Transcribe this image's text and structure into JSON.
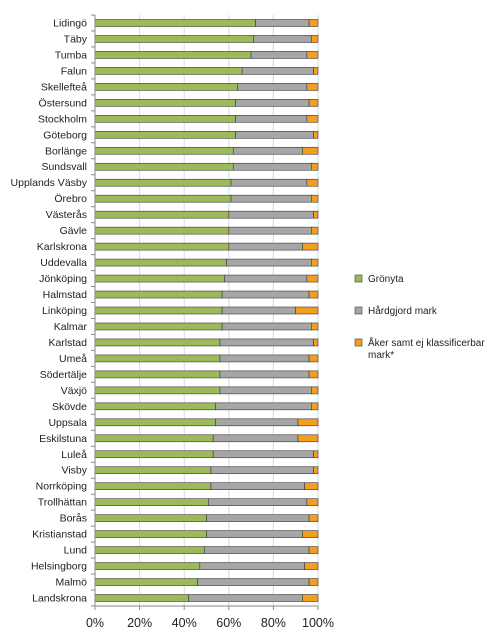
{
  "chart_data": {
    "type": "bar",
    "orientation": "horizontal",
    "stacked": "percent",
    "categories": [
      "Lidingö",
      "Täby",
      "Tumba",
      "Falun",
      "Skellefteå",
      "Östersund",
      "Stockholm",
      "Göteborg",
      "Borlänge",
      "Sundsvall",
      "Upplands Väsby",
      "Örebro",
      "Västerås",
      "Gävle",
      "Karlskrona",
      "Uddevalla",
      "Jönköping",
      "Halmstad",
      "Linköping",
      "Kalmar",
      "Karlstad",
      "Umeå",
      "Södertälje",
      "Växjö",
      "Skövde",
      "Uppsala",
      "Eskilstuna",
      "Luleå",
      "Visby",
      "Norrköping",
      "Trollhättan",
      "Borås",
      "Kristianstad",
      "Lund",
      "Helsingborg",
      "Malmö",
      "Landskrona"
    ],
    "series": [
      {
        "name": "Grönyta",
        "color": "#9bbb59",
        "values": [
          72,
          71,
          70,
          66,
          64,
          63,
          63,
          63,
          62,
          62,
          61,
          61,
          60,
          60,
          60,
          59,
          58,
          57,
          57,
          57,
          56,
          56,
          56,
          56,
          54,
          54,
          53,
          53,
          52,
          52,
          51,
          50,
          50,
          49,
          47,
          46,
          42
        ]
      },
      {
        "name": "Hårdgjord mark",
        "color": "#a6a6a6",
        "values": [
          24,
          26,
          25,
          32,
          31,
          33,
          32,
          35,
          31,
          35,
          34,
          36,
          38,
          37,
          33,
          38,
          37,
          39,
          33,
          40,
          42,
          40,
          40,
          41,
          43,
          37,
          38,
          45,
          46,
          42,
          44,
          46,
          43,
          47,
          47,
          50,
          51
        ]
      },
      {
        "name": "Åker samt ej klassificerbar mark*",
        "color": "#f59d1e",
        "values": [
          4,
          3,
          5,
          2,
          5,
          4,
          5,
          2,
          7,
          3,
          5,
          3,
          2,
          3,
          7,
          3,
          5,
          4,
          10,
          3,
          2,
          4,
          4,
          3,
          3,
          9,
          9,
          2,
          2,
          6,
          5,
          4,
          7,
          4,
          6,
          4,
          7
        ]
      }
    ],
    "xlim": [
      0,
      100
    ],
    "xticks": [
      "0%",
      "20%",
      "40%",
      "60%",
      "80%",
      "100%"
    ],
    "grid": true,
    "legend_position": "right"
  }
}
